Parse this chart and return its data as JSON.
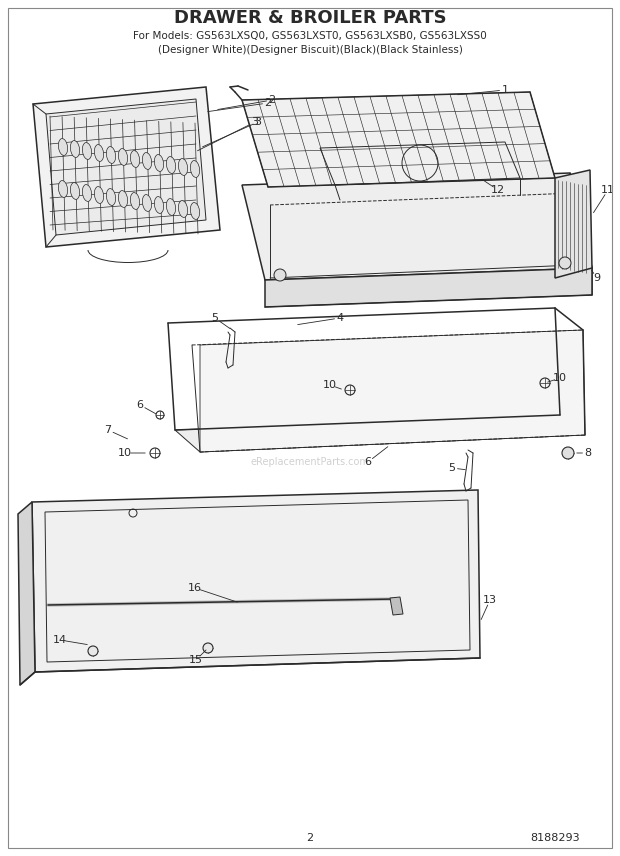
{
  "title_line1": "DRAWER & BROILER PARTS",
  "title_line2": "For Models: GS563LXSQ0, GS563LXST0, GS563LXSB0, GS563LXSS0",
  "title_line3": "(Designer White)(Designer Biscuit)(Black)(Black Stainless)",
  "page_number": "2",
  "doc_number": "8188293",
  "bg_color": "#ffffff",
  "line_color": "#2a2a2a",
  "watermark": "eReplacementParts.com",
  "figsize": [
    6.2,
    8.56
  ],
  "dpi": 100
}
